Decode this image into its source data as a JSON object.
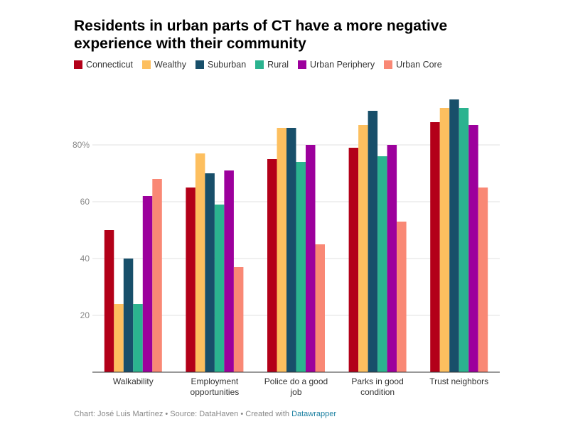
{
  "chart_data": {
    "type": "bar",
    "title": "Residents in urban parts of CT have a more negative experience with their community",
    "categories": [
      "Walkability",
      "Employment opportunities",
      "Police do a good job",
      "Parks in good condition",
      "Trust neighbors"
    ],
    "category_lines": [
      [
        "Walkability"
      ],
      [
        "Employment",
        "opportunities"
      ],
      [
        "Police do a good",
        "job"
      ],
      [
        "Parks in good",
        "condition"
      ],
      [
        "Trust neighbors"
      ]
    ],
    "series": [
      {
        "name": "Connecticut",
        "color": "#b30019",
        "values": [
          50,
          65,
          75,
          79,
          88
        ]
      },
      {
        "name": "Wealthy",
        "color": "#fdbf5f",
        "values": [
          24,
          77,
          86,
          87,
          93
        ]
      },
      {
        "name": "Suburban",
        "color": "#184f6a",
        "values": [
          40,
          70,
          86,
          92,
          96
        ]
      },
      {
        "name": "Rural",
        "color": "#2bb38f",
        "values": [
          24,
          59,
          74,
          76,
          93
        ]
      },
      {
        "name": "Urban Periphery",
        "color": "#9c009c",
        "values": [
          62,
          71,
          80,
          80,
          87
        ]
      },
      {
        "name": "Urban Core",
        "color": "#f98875",
        "values": [
          68,
          37,
          45,
          53,
          65
        ]
      }
    ],
    "yticks": [
      20,
      40,
      60,
      80
    ],
    "ytick_labels": [
      "20",
      "40",
      "60",
      "80%"
    ],
    "ylim": [
      0,
      100
    ],
    "grid": true,
    "legend_position": "top-left"
  },
  "footer": {
    "prefix": "Chart: José Luis Martínez • Source: DataHaven • Created with ",
    "link": "Datawrapper"
  }
}
